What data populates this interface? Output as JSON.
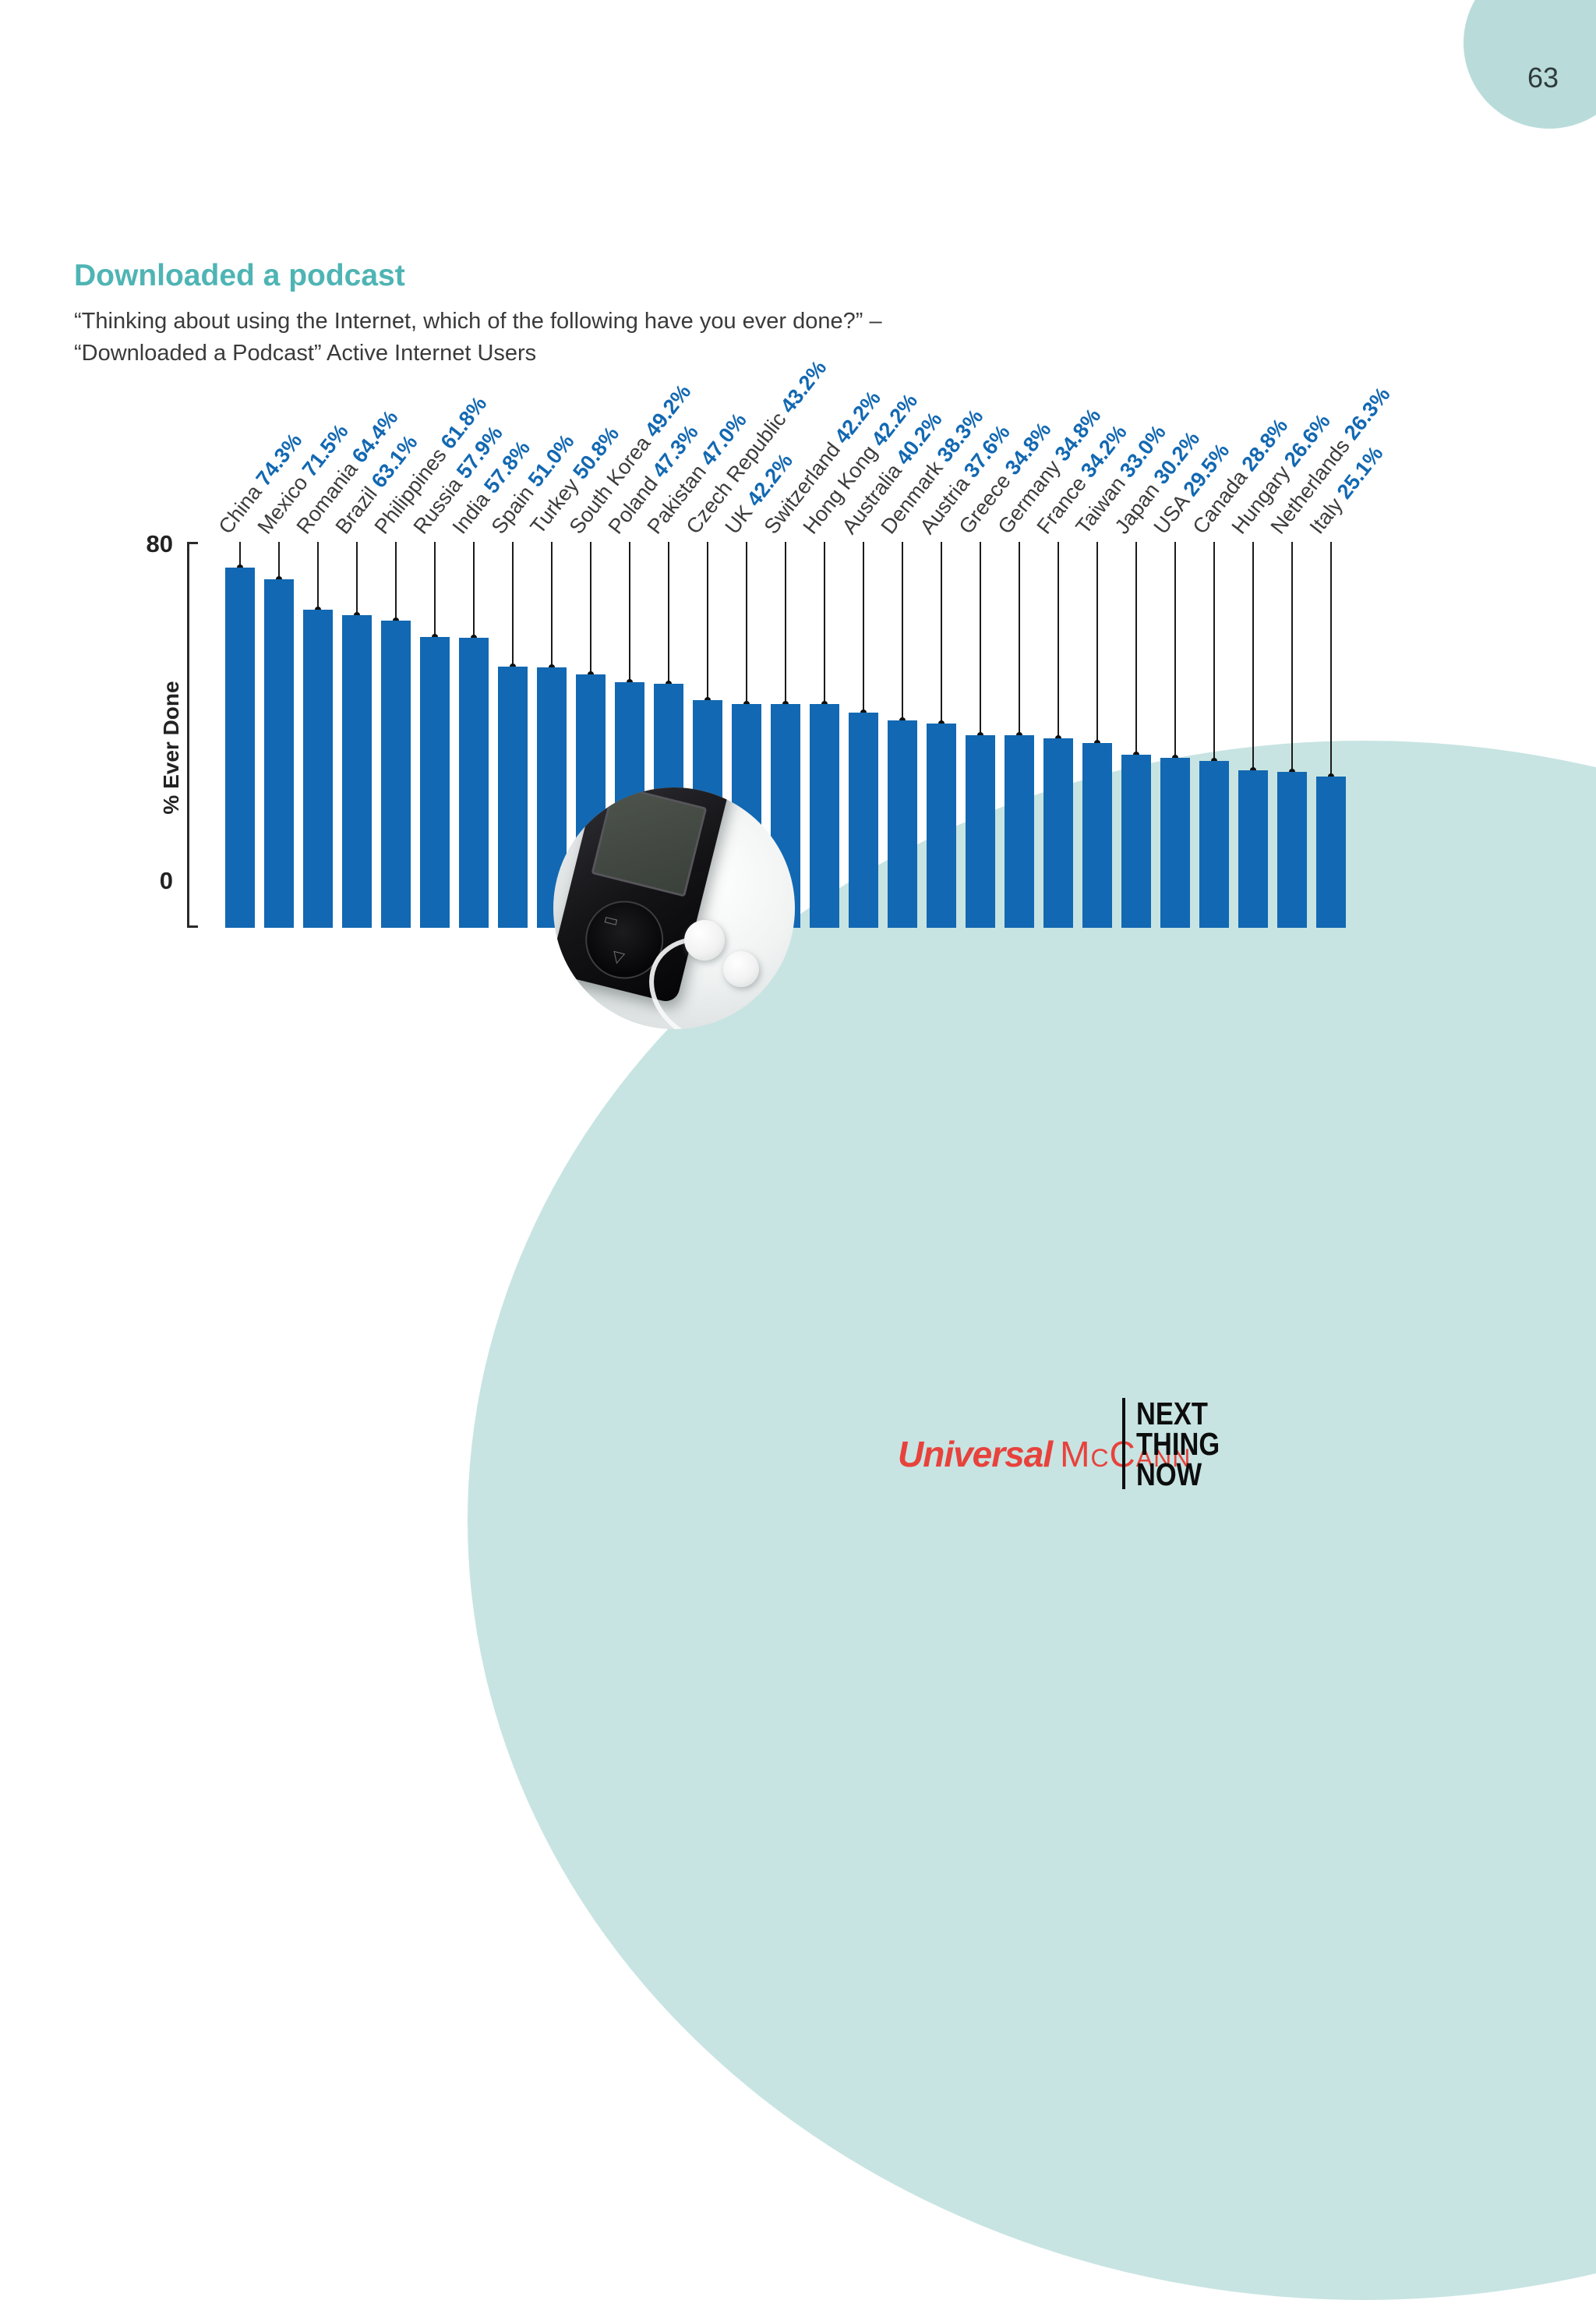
{
  "page": {
    "number": "63"
  },
  "header": {
    "title": "Downloaded a podcast",
    "subtitle_line1": "“Thinking about using the Internet, which of the following have you ever done?” –",
    "subtitle_line2": "“Downloaded a Podcast” Active Internet Users"
  },
  "chart_data": {
    "type": "bar",
    "title": "Downloaded a podcast",
    "xlabel": "",
    "ylabel": "% Ever Done",
    "ylim": [
      0,
      80
    ],
    "yticks": [
      "80",
      "0"
    ],
    "grid": false,
    "legend": null,
    "bar_color": "#1268b2",
    "value_suffix": "%",
    "categories": [
      "China",
      "Mexico",
      "Romania",
      "Brazil",
      "Philippines",
      "Russia",
      "India",
      "Spain",
      "Turkey",
      "South Korea",
      "Poland",
      "Pakistan",
      "Czech Republic",
      "UK",
      "Switzerland",
      "Hong Kong",
      "Australia",
      "Denmark",
      "Austria",
      "Greece",
      "Germany",
      "France",
      "Taiwan",
      "Japan",
      "USA",
      "Canada",
      "Hungary",
      "Netherlands",
      "Italy"
    ],
    "values": [
      74.3,
      71.5,
      64.4,
      63.1,
      61.8,
      57.9,
      57.8,
      51.0,
      50.8,
      49.2,
      47.3,
      47.0,
      43.2,
      42.2,
      42.2,
      42.2,
      40.2,
      38.3,
      37.6,
      34.8,
      34.8,
      34.2,
      33.0,
      30.2,
      29.5,
      28.8,
      26.6,
      26.3,
      25.1
    ]
  },
  "footer": {
    "brand_universal": "Universal",
    "brand_mccann": "McCann",
    "tagline_lines": [
      "NEXT",
      "THING",
      "NOW"
    ]
  },
  "colors": {
    "accent_teal": "#4fb4b4",
    "shape_teal": "#c7e4e2",
    "badge_teal": "#b9dcdb",
    "bar_blue": "#1268b2",
    "brand_red": "#e8423c",
    "text_dark": "#3a3a3a"
  }
}
